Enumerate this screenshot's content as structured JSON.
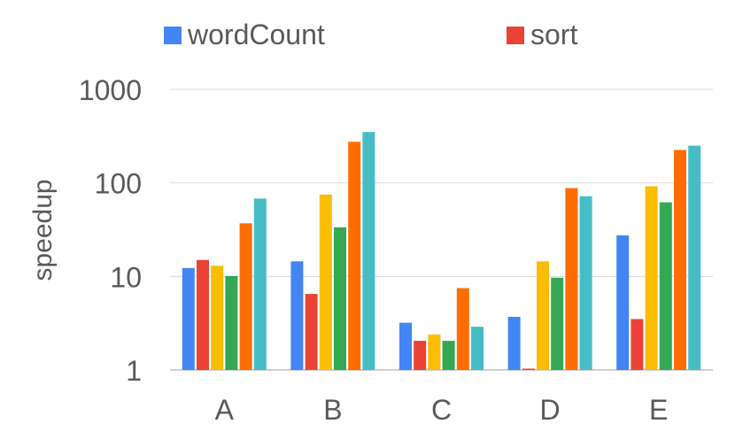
{
  "chart_data": {
    "type": "bar",
    "title": "",
    "xlabel": "",
    "ylabel": "speedup",
    "y_scale": "log",
    "ylim": [
      1,
      1000
    ],
    "y_ticks": [
      1,
      10,
      100,
      1000
    ],
    "y_tick_labels": [
      "1",
      "10",
      "100",
      "1000"
    ],
    "grid": true,
    "legend_position": "top",
    "categories": [
      "A",
      "B",
      "C",
      "D",
      "E"
    ],
    "series": [
      {
        "name": "wordCount",
        "color": "#4285F4",
        "values": [
          12.3,
          14.5,
          3.2,
          3.7,
          27.5
        ]
      },
      {
        "name": "sort",
        "color": "#EA4335",
        "values": [
          15.0,
          6.5,
          2.05,
          1.0,
          3.5
        ]
      },
      {
        "name": "",
        "color": "#FBBC04",
        "values": [
          13.0,
          75,
          2.4,
          14.5,
          92
        ]
      },
      {
        "name": "",
        "color": "#34A853",
        "values": [
          10.1,
          33.5,
          2.05,
          9.7,
          62
        ]
      },
      {
        "name": "",
        "color": "#FF6D01",
        "values": [
          37,
          275,
          7.5,
          88,
          225
        ]
      },
      {
        "name": "",
        "color": "#46BDC6",
        "values": [
          68,
          350,
          2.9,
          72,
          250
        ]
      }
    ]
  }
}
